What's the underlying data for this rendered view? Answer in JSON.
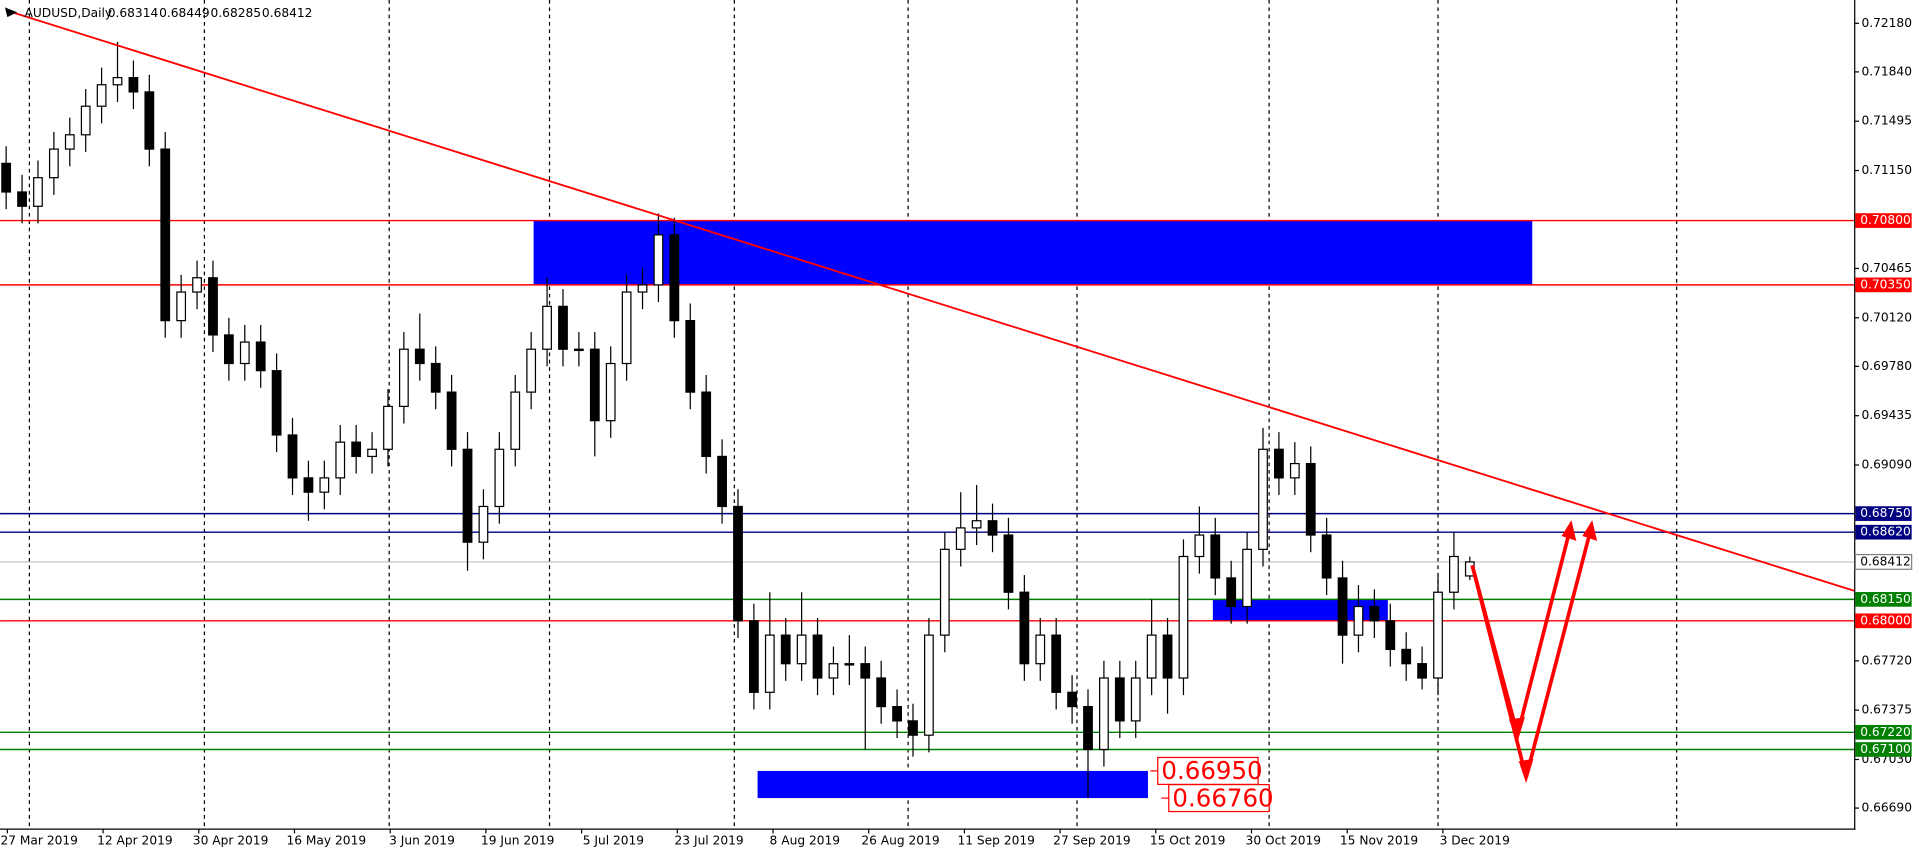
{
  "chart_data": {
    "type": "candlestick",
    "symbol": "AUDUSD,Daily",
    "categories": [
      "27 Mar 2019",
      "12 Apr 2019",
      "30 Apr 2019",
      "16 May 2019",
      "3 Jun 2019",
      "19 Jun 2019",
      "5 Jul 2019",
      "23 Jul 2019",
      "8 Aug 2019",
      "26 Aug 2019",
      "11 Sep 2019",
      "27 Sep 2019",
      "15 Oct 2019",
      "30 Oct 2019",
      "15 Nov 2019",
      "3 Dec 2019"
    ],
    "open": [
      0.712,
      0.71,
      0.709,
      0.711,
      0.713,
      0.714,
      0.716,
      0.7175,
      0.718,
      0.717,
      0.713,
      0.701,
      0.703,
      0.704,
      0.7,
      0.698,
      0.6995,
      0.6975,
      0.693,
      0.69,
      0.689,
      0.69,
      0.6925,
      0.6915,
      0.692,
      0.695,
      0.699,
      0.698,
      0.696,
      0.692,
      0.6855,
      0.688,
      0.692,
      0.696,
      0.699,
      0.702,
      0.699,
      0.699,
      0.694,
      0.698,
      0.703,
      0.7035,
      0.707,
      0.701,
      0.696,
      0.6915,
      0.688,
      0.68,
      0.675,
      0.679,
      0.677,
      0.679,
      0.676,
      0.677,
      0.677,
      0.676,
      0.674,
      0.673,
      0.672,
      0.679,
      0.685,
      0.6865,
      0.687,
      0.686,
      0.682,
      0.677,
      0.679,
      0.675,
      0.674,
      0.671,
      0.676,
      0.673,
      0.676,
      0.679,
      0.676,
      0.6845,
      0.686,
      0.683,
      0.681,
      0.685,
      0.692,
      0.69,
      0.691,
      0.686,
      0.683,
      0.679,
      0.681,
      0.68,
      0.678,
      0.677,
      0.676,
      0.682,
      0.68314
    ],
    "high": [
      0.7132,
      0.7112,
      0.7122,
      0.7142,
      0.7152,
      0.7172,
      0.7187,
      0.7205,
      0.7192,
      0.7182,
      0.7142,
      0.7042,
      0.7052,
      0.7052,
      0.7012,
      0.7007,
      0.7007,
      0.6987,
      0.6942,
      0.6912,
      0.6912,
      0.6937,
      0.6937,
      0.6932,
      0.6962,
      0.7002,
      0.7015,
      0.6992,
      0.6972,
      0.6932,
      0.6892,
      0.6932,
      0.6972,
      0.7002,
      0.704,
      0.7032,
      0.7002,
      0.7002,
      0.6992,
      0.7042,
      0.7047,
      0.7085,
      0.7082,
      0.7022,
      0.6972,
      0.6927,
      0.6892,
      0.6812,
      0.682,
      0.6802,
      0.682,
      0.6802,
      0.6782,
      0.679,
      0.6782,
      0.6772,
      0.6752,
      0.6742,
      0.6802,
      0.6862,
      0.689,
      0.6895,
      0.6882,
      0.6872,
      0.6832,
      0.6802,
      0.6802,
      0.6762,
      0.6752,
      0.6772,
      0.6772,
      0.6772,
      0.6815,
      0.6802,
      0.6857,
      0.688,
      0.6872,
      0.6842,
      0.6862,
      0.6935,
      0.6932,
      0.6925,
      0.6922,
      0.6872,
      0.6842,
      0.6825,
      0.6822,
      0.6812,
      0.6792,
      0.6782,
      0.6832,
      0.6862,
      0.68449
    ],
    "low": [
      0.7088,
      0.7078,
      0.7078,
      0.7098,
      0.7118,
      0.7128,
      0.7148,
      0.7163,
      0.7158,
      0.7118,
      0.6998,
      0.6998,
      0.7018,
      0.6988,
      0.6968,
      0.6968,
      0.6963,
      0.6918,
      0.6888,
      0.687,
      0.6878,
      0.6888,
      0.6903,
      0.6903,
      0.6908,
      0.6938,
      0.6968,
      0.6948,
      0.6908,
      0.6835,
      0.6843,
      0.6868,
      0.6908,
      0.6948,
      0.6978,
      0.6978,
      0.6978,
      0.6915,
      0.6928,
      0.6968,
      0.7018,
      0.7023,
      0.6998,
      0.6948,
      0.6903,
      0.6868,
      0.6788,
      0.6738,
      0.6738,
      0.6758,
      0.6758,
      0.6748,
      0.6748,
      0.6755,
      0.671,
      0.6728,
      0.6718,
      0.6705,
      0.6708,
      0.6778,
      0.6838,
      0.6853,
      0.6848,
      0.6808,
      0.6758,
      0.6758,
      0.6738,
      0.6728,
      0.6676,
      0.6698,
      0.6718,
      0.6718,
      0.6748,
      0.6735,
      0.6748,
      0.6833,
      0.6818,
      0.6798,
      0.6798,
      0.6838,
      0.6888,
      0.6888,
      0.6848,
      0.6818,
      0.677,
      0.6778,
      0.6788,
      0.6768,
      0.6758,
      0.6752,
      0.6748,
      0.6808,
      0.68285
    ],
    "close": [
      0.71,
      0.709,
      0.711,
      0.713,
      0.714,
      0.716,
      0.7175,
      0.718,
      0.717,
      0.713,
      0.701,
      0.703,
      0.704,
      0.7,
      0.698,
      0.6995,
      0.6975,
      0.693,
      0.69,
      0.689,
      0.69,
      0.6925,
      0.6915,
      0.692,
      0.695,
      0.699,
      0.698,
      0.696,
      0.692,
      0.6855,
      0.688,
      0.692,
      0.696,
      0.699,
      0.702,
      0.699,
      0.699,
      0.694,
      0.698,
      0.703,
      0.7035,
      0.707,
      0.701,
      0.696,
      0.6915,
      0.688,
      0.68,
      0.675,
      0.679,
      0.677,
      0.679,
      0.676,
      0.677,
      0.677,
      0.676,
      0.674,
      0.673,
      0.672,
      0.679,
      0.685,
      0.6865,
      0.687,
      0.686,
      0.682,
      0.677,
      0.679,
      0.675,
      0.674,
      0.671,
      0.676,
      0.673,
      0.676,
      0.679,
      0.676,
      0.6845,
      0.686,
      0.683,
      0.681,
      0.685,
      0.692,
      0.69,
      0.691,
      0.686,
      0.683,
      0.679,
      0.681,
      0.68,
      0.678,
      0.677,
      0.676,
      0.682,
      0.6845,
      0.68412
    ],
    "ylim": [
      0.66547,
      0.72343
    ],
    "yticks": [
      {
        "value": 0.7218,
        "label": "0.72180"
      },
      {
        "value": 0.7184,
        "label": "0.71840"
      },
      {
        "value": 0.71495,
        "label": "0.71495"
      },
      {
        "value": 0.7115,
        "label": "0.71150"
      },
      {
        "value": 0.70465,
        "label": "0.70465"
      },
      {
        "value": 0.7012,
        "label": "0.70120"
      },
      {
        "value": 0.6978,
        "label": "0.69780"
      },
      {
        "value": 0.69435,
        "label": "0.69435"
      },
      {
        "value": 0.6909,
        "label": "0.69090"
      },
      {
        "value": 0.6772,
        "label": "0.67720"
      },
      {
        "value": 0.67375,
        "label": "0.67375"
      },
      {
        "value": 0.6703,
        "label": "0.67030"
      },
      {
        "value": 0.6669,
        "label": "0.66690"
      }
    ],
    "levels": [
      {
        "value": 0.708,
        "label": "0.70800",
        "color": "#ff0000"
      },
      {
        "value": 0.7035,
        "label": "0.70350",
        "color": "#ff0000"
      },
      {
        "value": 0.6875,
        "label": "0.68750",
        "color": "#000080"
      },
      {
        "value": 0.6862,
        "label": "0.68620",
        "color": "#000080"
      },
      {
        "value": 0.6815,
        "label": "0.68150",
        "color": "#008000"
      },
      {
        "value": 0.68,
        "label": "0.68000",
        "color": "#ff0000"
      },
      {
        "value": 0.6722,
        "label": "0.67220",
        "color": "#008000"
      },
      {
        "value": 0.671,
        "label": "0.67100",
        "color": "#008000"
      }
    ],
    "current": {
      "value": 0.68412,
      "label": "0.68412"
    },
    "annotations": [
      {
        "value": 0.6695,
        "label": "0.66950"
      },
      {
        "value": 0.6676,
        "label": "0.66760"
      }
    ],
    "zone_color": "#0000ff",
    "trendline": [
      0.7227,
      0.6821
    ]
  }
}
